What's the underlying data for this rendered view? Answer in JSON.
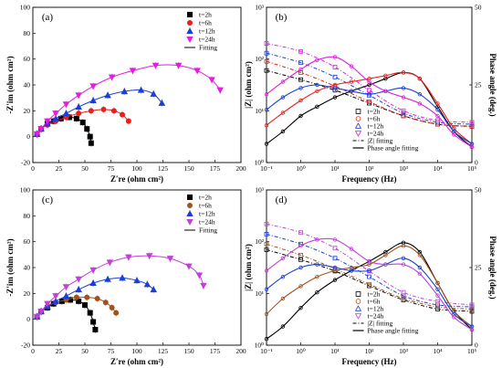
{
  "colors": {
    "2h": "#000000",
    "6h": "#e8201a",
    "12h": "#1a3fd6",
    "24h": "#e21de0",
    "fit": "#000000"
  },
  "colors_bottom": {
    "2h": "#000000",
    "6h": "#a0521d",
    "12h": "#1a3fd6",
    "24h": "#c040d8",
    "fit": "#000000"
  },
  "chart_data": [
    {
      "panel": "(a)",
      "type": "scatter",
      "xlabel": "Z′re (ohm cm²)",
      "ylabel": "-Z′im (ohm cm²)",
      "xlim": [
        0,
        200
      ],
      "ylim": [
        -20,
        100
      ],
      "xticks": [
        0,
        25,
        50,
        75,
        100,
        125,
        150,
        175,
        200
      ],
      "yticks": [
        -20,
        0,
        20,
        40,
        60,
        80,
        100
      ],
      "legend": [
        "t=2h",
        "t=6h",
        "t=12h",
        "t=24h",
        "Fitting"
      ],
      "legend_position": "top-right",
      "series": [
        {
          "name": "t=2h",
          "marker": "square",
          "x": [
            4,
            8,
            14,
            20,
            27,
            35,
            42,
            48,
            52,
            55,
            56
          ],
          "y": [
            2,
            6,
            10,
            12,
            14,
            15,
            14,
            11,
            6,
            0,
            -5
          ]
        },
        {
          "name": "t=6h",
          "marker": "circle",
          "x": [
            4,
            8,
            14,
            22,
            32,
            44,
            56,
            68,
            78,
            86,
            92
          ],
          "y": [
            2,
            6,
            9,
            12,
            15,
            18,
            20,
            21,
            20,
            17,
            12
          ]
        },
        {
          "name": "t=12h",
          "marker": "triangle-up",
          "x": [
            4,
            8,
            14,
            22,
            32,
            44,
            58,
            72,
            88,
            104,
            116,
            124
          ],
          "y": [
            2,
            6,
            10,
            14,
            18,
            23,
            28,
            32,
            35,
            36,
            33,
            26
          ]
        },
        {
          "name": "t=24h",
          "marker": "triangle-down",
          "x": [
            4,
            8,
            14,
            22,
            32,
            44,
            58,
            76,
            96,
            118,
            140,
            158,
            172,
            180
          ],
          "y": [
            2,
            6,
            12,
            18,
            25,
            32,
            39,
            46,
            51,
            55,
            55,
            51,
            44,
            36
          ]
        }
      ]
    },
    {
      "panel": "(b)",
      "type": "line",
      "xlabel": "Frequency (Hz)",
      "ylabel": "|Z| (ohm cm²)",
      "ylabel_right": "Phase angle (deg.)",
      "xscale": "log",
      "yscale": "log",
      "xlim": [
        0.1,
        100000
      ],
      "ylim": [
        1,
        1000
      ],
      "ylim_right": [
        0,
        50
      ],
      "xticks": [
        "10⁻¹",
        "10⁰",
        "10¹",
        "10²",
        "10³",
        "10⁴",
        "10⁵"
      ],
      "yticks": [
        "10⁰",
        "10¹",
        "10²",
        "10³"
      ],
      "yticks_right": [
        0,
        25,
        50
      ],
      "legend": [
        "t=2h",
        "t=6h",
        "t=12h",
        "t=24h",
        "|Z| fitting",
        "Phase angle fitting"
      ],
      "legend_position": "bottom-center",
      "modulus_series": [
        {
          "name": "t=2h",
          "freq": [
            0.1,
            1,
            10,
            100,
            1000,
            10000,
            100000
          ],
          "z": [
            60,
            40,
            25,
            14,
            8,
            5.5,
            5
          ]
        },
        {
          "name": "t=6h",
          "freq": [
            0.1,
            1,
            10,
            100,
            1000,
            10000,
            100000
          ],
          "z": [
            90,
            55,
            30,
            15,
            8,
            5.5,
            5
          ]
        },
        {
          "name": "t=12h",
          "freq": [
            0.1,
            1,
            10,
            100,
            1000,
            10000,
            100000
          ],
          "z": [
            130,
            85,
            45,
            20,
            9,
            6,
            5.5
          ]
        },
        {
          "name": "t=24h",
          "freq": [
            0.1,
            1,
            10,
            100,
            1000,
            10000,
            100000
          ],
          "z": [
            200,
            140,
            70,
            25,
            10,
            6.5,
            6
          ]
        }
      ],
      "phase_series": [
        {
          "name": "t=2h",
          "freq": [
            0.1,
            0.3,
            1,
            3,
            10,
            30,
            100,
            300,
            1000,
            3000,
            10000,
            30000,
            100000
          ],
          "phase": [
            6,
            10,
            15,
            18,
            21,
            23,
            25,
            27,
            29,
            27,
            18,
            10,
            5
          ]
        },
        {
          "name": "t=6h",
          "freq": [
            0.1,
            0.3,
            1,
            3,
            10,
            30,
            100,
            300,
            1000,
            3000,
            10000,
            30000,
            100000
          ],
          "phase": [
            12,
            16,
            20,
            23,
            25,
            26,
            27,
            28,
            29,
            27,
            19,
            11,
            6
          ]
        },
        {
          "name": "t=12h",
          "freq": [
            0.1,
            0.3,
            1,
            3,
            10,
            30,
            100,
            300,
            1000,
            3000,
            10000,
            30000,
            100000
          ],
          "phase": [
            17,
            21,
            24,
            25,
            24,
            23,
            22,
            23,
            24,
            22,
            17,
            10,
            6
          ]
        },
        {
          "name": "t=24h",
          "freq": [
            0.1,
            0.3,
            1,
            3,
            10,
            30,
            100,
            300,
            1000,
            3000,
            10000,
            30000,
            100000
          ],
          "phase": [
            22,
            26,
            30,
            33,
            34,
            31,
            26,
            23,
            21,
            19,
            15,
            9,
            5
          ]
        }
      ]
    },
    {
      "panel": "(c)",
      "type": "scatter",
      "xlabel": "Z′re (ohm cm²)",
      "ylabel": "-Z′im (ohm cm²)",
      "xlim": [
        0,
        200
      ],
      "ylim": [
        -20,
        100
      ],
      "xticks": [
        0,
        25,
        50,
        75,
        100,
        125,
        150,
        175,
        200
      ],
      "yticks": [
        -20,
        0,
        20,
        40,
        60,
        80,
        100
      ],
      "legend": [
        "t=2h",
        "t=6h",
        "t=12h",
        "t=24h",
        "Fitting"
      ],
      "legend_position": "top-right",
      "series": [
        {
          "name": "t=2h",
          "marker": "square",
          "x": [
            4,
            8,
            14,
            20,
            28,
            36,
            44,
            50,
            55,
            58,
            60
          ],
          "y": [
            2,
            6,
            9,
            12,
            14,
            15,
            14,
            11,
            5,
            -2,
            -8
          ]
        },
        {
          "name": "t=6h",
          "marker": "circle",
          "x": [
            4,
            8,
            14,
            22,
            32,
            42,
            52,
            62,
            70,
            76,
            80
          ],
          "y": [
            2,
            6,
            10,
            13,
            15,
            17,
            17,
            16,
            13,
            9,
            5
          ]
        },
        {
          "name": "t=12h",
          "marker": "triangle-up",
          "x": [
            4,
            8,
            14,
            22,
            32,
            44,
            58,
            72,
            86,
            100,
            110,
            116
          ],
          "y": [
            2,
            6,
            10,
            14,
            18,
            23,
            28,
            31,
            32,
            30,
            27,
            23
          ]
        },
        {
          "name": "t=24h",
          "marker": "triangle-down",
          "x": [
            4,
            8,
            14,
            22,
            32,
            44,
            58,
            74,
            92,
            112,
            132,
            150,
            160,
            164
          ],
          "y": [
            2,
            6,
            12,
            18,
            25,
            31,
            38,
            44,
            48,
            49,
            47,
            41,
            34,
            26
          ]
        }
      ]
    },
    {
      "panel": "(d)",
      "type": "line",
      "xlabel": "Frequency (Hz)",
      "ylabel": "|Z| (ohm cm²)",
      "ylabel_right": "Phase angle (deg.)",
      "xscale": "log",
      "yscale": "log",
      "xlim": [
        0.1,
        100000
      ],
      "ylim": [
        1,
        1000
      ],
      "ylim_right": [
        0,
        50
      ],
      "xticks": [
        "10⁻¹",
        "10⁰",
        "10¹",
        "10²",
        "10³",
        "10⁴",
        "10⁵"
      ],
      "yticks": [
        "10⁰",
        "10¹",
        "10²",
        "10³"
      ],
      "yticks_right": [
        0,
        25,
        50
      ],
      "legend": [
        "t=2h",
        "t=6h",
        "t=12h",
        "t=24h",
        "|Z| fitting",
        "Phase angle fitting"
      ],
      "legend_position": "bottom-center",
      "modulus_series": [
        {
          "name": "t=2h",
          "freq": [
            0.1,
            1,
            10,
            100,
            1000,
            10000,
            100000
          ],
          "z": [
            70,
            45,
            27,
            14,
            7.5,
            5,
            4.5
          ]
        },
        {
          "name": "t=6h",
          "freq": [
            0.1,
            1,
            10,
            100,
            1000,
            10000,
            100000
          ],
          "z": [
            90,
            55,
            30,
            15,
            8,
            5.5,
            5
          ]
        },
        {
          "name": "t=12h",
          "freq": [
            0.1,
            1,
            10,
            100,
            1000,
            10000,
            100000
          ],
          "z": [
            140,
            90,
            48,
            21,
            9,
            6,
            5.5
          ]
        },
        {
          "name": "t=24h",
          "freq": [
            0.1,
            1,
            10,
            100,
            1000,
            10000,
            100000
          ],
          "z": [
            220,
            150,
            75,
            27,
            10.5,
            7,
            6
          ]
        }
      ],
      "phase_series": [
        {
          "name": "t=2h",
          "freq": [
            0.1,
            0.3,
            1,
            3,
            10,
            30,
            100,
            300,
            1000,
            3000,
            10000,
            30000,
            100000
          ],
          "phase": [
            2,
            6,
            12,
            17,
            21,
            24,
            27,
            30,
            33,
            30,
            20,
            11,
            5
          ]
        },
        {
          "name": "t=6h",
          "freq": [
            0.1,
            0.3,
            1,
            3,
            10,
            30,
            100,
            300,
            1000,
            3000,
            10000,
            30000,
            100000
          ],
          "phase": [
            10,
            15,
            19,
            22,
            24,
            25,
            26,
            29,
            32,
            29,
            20,
            11,
            6
          ]
        },
        {
          "name": "t=12h",
          "freq": [
            0.1,
            0.3,
            1,
            3,
            10,
            30,
            100,
            300,
            1000,
            3000,
            10000,
            30000,
            100000
          ],
          "phase": [
            18,
            22,
            25,
            26,
            25,
            24,
            24,
            26,
            28,
            25,
            18,
            10,
            6
          ]
        },
        {
          "name": "t=24h",
          "freq": [
            0.1,
            0.3,
            1,
            3,
            10,
            30,
            100,
            300,
            1000,
            3000,
            10000,
            30000,
            100000
          ],
          "phase": [
            24,
            28,
            32,
            34,
            34,
            31,
            27,
            26,
            26,
            23,
            16,
            9,
            5
          ]
        }
      ]
    }
  ]
}
